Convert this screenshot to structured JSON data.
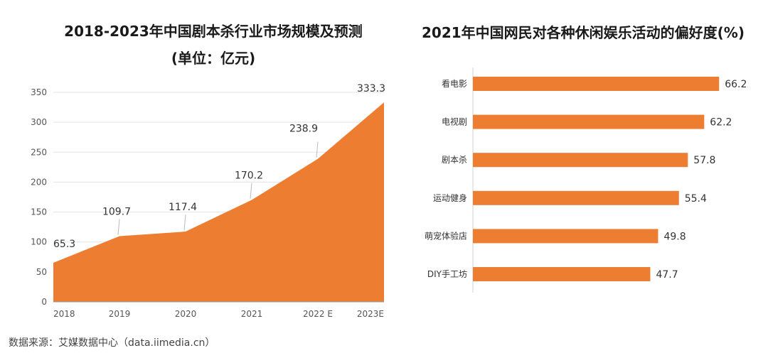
{
  "source": "数据来源：艾媒数据中心（data.iimedia.cn）",
  "accent_color": "#ED7D31",
  "chart_data": [
    {
      "type": "area",
      "title_line1": "2018-2023年中国剧本杀行业市场规模及预测",
      "title_line2": "(单位：亿元)",
      "categories": [
        "2018",
        "2019",
        "2020",
        "2021",
        "2022 E",
        "2023E"
      ],
      "values": [
        65.3,
        109.7,
        117.4,
        170.2,
        238.9,
        333.3
      ],
      "ylim": [
        0,
        350
      ],
      "yticks": [
        0,
        50,
        100,
        150,
        200,
        250,
        300,
        350
      ],
      "grid": true,
      "color": "#ED7D31"
    },
    {
      "type": "bar",
      "orientation": "horizontal",
      "title": "2021年中国网民对各种休闲娱乐活动的偏好度(%)",
      "categories": [
        "看电影",
        "电视剧",
        "剧本杀",
        "运动健身",
        "萌宠体验店",
        "DIY手工坊"
      ],
      "values": [
        66.2,
        62.2,
        57.8,
        55.4,
        49.8,
        47.7
      ],
      "color": "#ED7D31"
    }
  ]
}
